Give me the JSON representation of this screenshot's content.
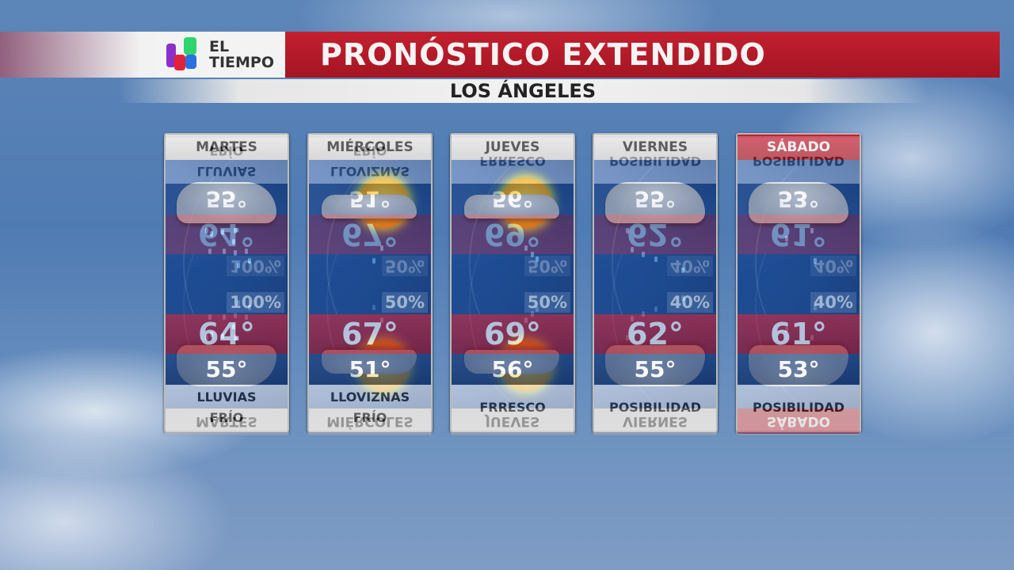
{
  "header": {
    "logo_text_1": "EL",
    "logo_text_2": "TIEMPO",
    "title": "PRONÓSTICO EXTENDIDO",
    "location": "LOS ÁNGELES"
  },
  "colors": {
    "accent_red": "#b51a29",
    "low_blue": "#1d3b70",
    "brand_colors": [
      "#8b2fc9",
      "#2fd46e",
      "#e0223a",
      "#2b6fe0"
    ]
  },
  "days": [
    {
      "name": "MARTES",
      "icon": "rain-cloud-icon",
      "precip": "100%",
      "high": "64°",
      "low": "55°",
      "desc1": "LLUVIAS",
      "desc2": "FRÍO",
      "highlight": false
    },
    {
      "name": "MIÉRCOLES",
      "icon": "partly-sunny-drizzle-icon",
      "precip": "50%",
      "high": "67°",
      "low": "51°",
      "desc1": "LLOVIZNAS",
      "desc2": "FRÍO",
      "highlight": false
    },
    {
      "name": "JUEVES",
      "icon": "partly-sunny-rain-icon",
      "precip": "50%",
      "high": "69°",
      "low": "56°",
      "desc1": "FRRESCO",
      "desc2": "",
      "highlight": false
    },
    {
      "name": "VIERNES",
      "icon": "rain-cloud-icon",
      "precip": "40%",
      "high": "62°",
      "low": "55°",
      "desc1": "POSIBILIDAD",
      "desc2": "",
      "highlight": false
    },
    {
      "name": "SÁBADO",
      "icon": "rain-cloud-icon",
      "precip": "40%",
      "high": "61°",
      "low": "53°",
      "desc1": "POSIBILIDAD",
      "desc2": "",
      "highlight": true
    }
  ]
}
